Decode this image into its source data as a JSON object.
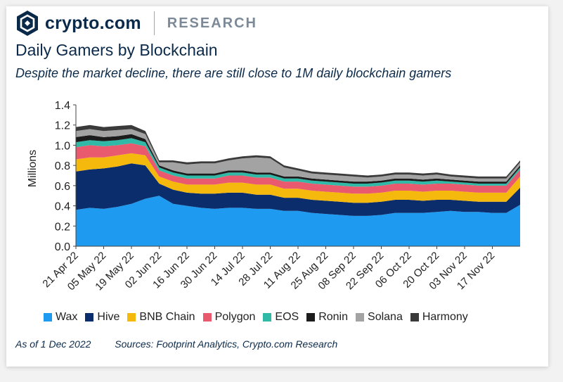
{
  "brand": {
    "name": "crypto.com",
    "section": "RESEARCH"
  },
  "title": "Daily Gamers by Blockchain",
  "subtitle": "Despite the market decline, there are still close to 1M daily blockchain gamers",
  "footer": {
    "as_of": "As of 1 Dec 2022",
    "sources": "Sources: Footprint Analytics, Crypto.com Research"
  },
  "colors": {
    "brand": "#0b2a4a",
    "Wax": "#1e9bf0",
    "Hive": "#0b2d6b",
    "BNB Chain": "#f5b80c",
    "Polygon": "#ea5a6e",
    "EOS": "#2fb9a6",
    "Ronin": "#1c1c1c",
    "Solana": "#a3a3a3",
    "Harmony": "#3a3a3a"
  },
  "chart_data": {
    "type": "area",
    "stacked": true,
    "title": "Daily Gamers by Blockchain",
    "xlabel": "",
    "ylabel": "Millions",
    "ylim": [
      0,
      1.4
    ],
    "yticks": [
      "0.0",
      "0.2",
      "0.4",
      "0.6",
      "0.8",
      "1.0",
      "1.2",
      "1.4"
    ],
    "xticks": [
      "21 Apr 22",
      "05 May 22",
      "19 May 22",
      "02 Jun 22",
      "16 Jun 22",
      "30 Jun 22",
      "14 Jul 22",
      "28 Jul 22",
      "11 Aug 22",
      "25 Aug 22",
      "08 Sep 22",
      "22 Sep 22",
      "06 Oct 22",
      "20 Oct 22",
      "03 Nov 22",
      "17 Nov 22"
    ],
    "legend_position": "bottom",
    "x": [
      "21 Apr 22",
      "28 Apr 22",
      "05 May 22",
      "12 May 22",
      "19 May 22",
      "26 May 22",
      "02 Jun 22",
      "09 Jun 22",
      "16 Jun 22",
      "23 Jun 22",
      "30 Jun 22",
      "07 Jul 22",
      "14 Jul 22",
      "21 Jul 22",
      "28 Jul 22",
      "04 Aug 22",
      "11 Aug 22",
      "18 Aug 22",
      "25 Aug 22",
      "01 Sep 22",
      "08 Sep 22",
      "15 Sep 22",
      "22 Sep 22",
      "29 Sep 22",
      "06 Oct 22",
      "13 Oct 22",
      "20 Oct 22",
      "27 Oct 22",
      "03 Nov 22",
      "10 Nov 22",
      "17 Nov 22",
      "24 Nov 22",
      "01 Dec 22"
    ],
    "series": [
      {
        "name": "Wax",
        "values": [
          0.36,
          0.38,
          0.37,
          0.39,
          0.42,
          0.47,
          0.5,
          0.42,
          0.4,
          0.38,
          0.37,
          0.38,
          0.38,
          0.37,
          0.37,
          0.35,
          0.35,
          0.33,
          0.32,
          0.31,
          0.3,
          0.3,
          0.31,
          0.33,
          0.33,
          0.33,
          0.34,
          0.35,
          0.34,
          0.34,
          0.33,
          0.33,
          0.41
        ]
      },
      {
        "name": "Hive",
        "values": [
          0.38,
          0.38,
          0.4,
          0.4,
          0.4,
          0.33,
          0.12,
          0.14,
          0.13,
          0.14,
          0.15,
          0.15,
          0.15,
          0.14,
          0.14,
          0.13,
          0.13,
          0.13,
          0.13,
          0.13,
          0.13,
          0.13,
          0.13,
          0.13,
          0.13,
          0.12,
          0.12,
          0.11,
          0.11,
          0.1,
          0.11,
          0.11,
          0.17
        ]
      },
      {
        "name": "BNB Chain",
        "values": [
          0.12,
          0.12,
          0.11,
          0.11,
          0.1,
          0.1,
          0.07,
          0.08,
          0.08,
          0.09,
          0.09,
          0.1,
          0.1,
          0.1,
          0.1,
          0.09,
          0.09,
          0.09,
          0.09,
          0.09,
          0.09,
          0.09,
          0.09,
          0.09,
          0.09,
          0.09,
          0.09,
          0.09,
          0.09,
          0.09,
          0.09,
          0.09,
          0.11
        ]
      },
      {
        "name": "Polygon",
        "values": [
          0.12,
          0.12,
          0.11,
          0.1,
          0.1,
          0.09,
          0.06,
          0.06,
          0.06,
          0.06,
          0.06,
          0.07,
          0.07,
          0.07,
          0.07,
          0.07,
          0.07,
          0.07,
          0.07,
          0.07,
          0.07,
          0.07,
          0.07,
          0.07,
          0.07,
          0.07,
          0.07,
          0.07,
          0.07,
          0.07,
          0.07,
          0.07,
          0.07
        ]
      },
      {
        "name": "EOS",
        "values": [
          0.05,
          0.05,
          0.05,
          0.05,
          0.05,
          0.04,
          0.03,
          0.03,
          0.03,
          0.03,
          0.03,
          0.03,
          0.03,
          0.03,
          0.03,
          0.03,
          0.03,
          0.03,
          0.03,
          0.03,
          0.03,
          0.03,
          0.03,
          0.03,
          0.03,
          0.03,
          0.03,
          0.02,
          0.02,
          0.02,
          0.02,
          0.02,
          0.02
        ]
      },
      {
        "name": "Ronin",
        "values": [
          0.05,
          0.05,
          0.04,
          0.04,
          0.04,
          0.03,
          0.02,
          0.02,
          0.02,
          0.02,
          0.02,
          0.02,
          0.02,
          0.02,
          0.02,
          0.02,
          0.02,
          0.02,
          0.02,
          0.02,
          0.02,
          0.02,
          0.02,
          0.02,
          0.02,
          0.02,
          0.02,
          0.02,
          0.02,
          0.02,
          0.02,
          0.02,
          0.02
        ]
      },
      {
        "name": "Solana",
        "values": [
          0.06,
          0.06,
          0.06,
          0.06,
          0.05,
          0.05,
          0.03,
          0.08,
          0.09,
          0.1,
          0.1,
          0.1,
          0.12,
          0.15,
          0.14,
          0.09,
          0.06,
          0.05,
          0.05,
          0.05,
          0.05,
          0.04,
          0.04,
          0.04,
          0.04,
          0.04,
          0.04,
          0.03,
          0.03,
          0.03,
          0.03,
          0.03,
          0.03
        ]
      },
      {
        "name": "Harmony",
        "values": [
          0.04,
          0.04,
          0.04,
          0.04,
          0.04,
          0.03,
          0.02,
          0.02,
          0.02,
          0.02,
          0.02,
          0.02,
          0.02,
          0.02,
          0.02,
          0.02,
          0.02,
          0.02,
          0.02,
          0.02,
          0.02,
          0.02,
          0.02,
          0.02,
          0.02,
          0.02,
          0.02,
          0.02,
          0.02,
          0.02,
          0.02,
          0.02,
          0.02
        ]
      }
    ]
  }
}
